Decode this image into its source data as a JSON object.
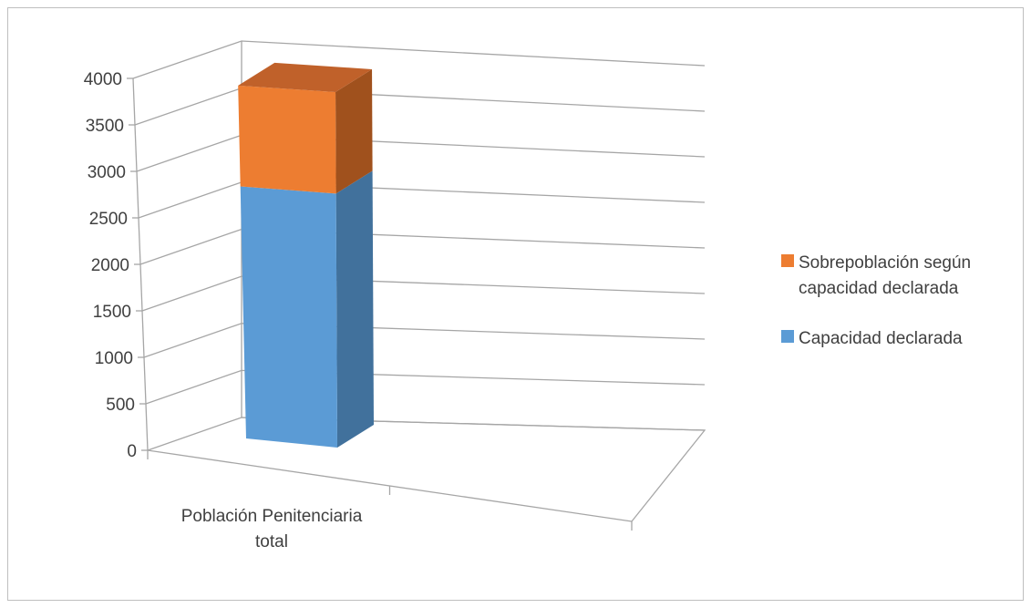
{
  "chart_data": {
    "type": "bar",
    "stacked": true,
    "three_d": true,
    "categories": [
      "Población Penitenciaria total"
    ],
    "category_lines": [
      "Población Penitenciaria",
      "total"
    ],
    "series": [
      {
        "name": "Capacidad declarada",
        "values": [
          2800
        ],
        "color": "#5b9bd5",
        "side_color": "#41719c",
        "top_color": "#6fa8dc"
      },
      {
        "name": "Sobrepoblación según capacidad declarada",
        "name_lines": [
          "Sobrepoblación según",
          "capacidad declarada"
        ],
        "values": [
          1120
        ],
        "color": "#ed7d31",
        "side_color": "#a0511d",
        "top_color": "#c0612a"
      }
    ],
    "ylim": [
      0,
      4000
    ],
    "yticks": [
      0,
      500,
      1000,
      1500,
      2000,
      2500,
      3000,
      3500,
      4000
    ],
    "grid": true,
    "legend_position": "right",
    "title": "",
    "xlabel": "",
    "ylabel": ""
  }
}
